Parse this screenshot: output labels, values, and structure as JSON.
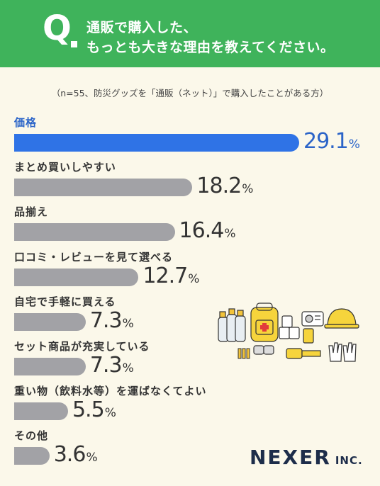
{
  "header": {
    "q_letter": "Q",
    "line1": "通販で購入した、",
    "line2": "もっとも大きな理由を教えてください。"
  },
  "subtitle": "（n=55、防災グッズを「通販（ネット）」で購入したことがある方）",
  "chart_data": {
    "type": "bar",
    "orientation": "horizontal",
    "title": "通販で購入した、もっとも大きな理由を教えてください。",
    "unit": "%",
    "categories": [
      "価格",
      "まとめ買いしやすい",
      "品揃え",
      "口コミ・レビューを見て選べる",
      "自宅で手軽に買える",
      "セット商品が充実している",
      "重い物（飲料水等）を運ばなくてよい",
      "その他"
    ],
    "values": [
      29.1,
      18.2,
      16.4,
      12.7,
      7.3,
      7.3,
      5.5,
      3.6
    ],
    "highlight_index": 0,
    "colors": {
      "highlight": "#2f73e6",
      "default": "#a2a2a6",
      "highlight_text": "#2b64c8"
    },
    "xlim": [
      0,
      29.1
    ],
    "grid": false,
    "legend": "none"
  },
  "illustration": "disaster-supplies-illustration",
  "logo": {
    "main": "NEXER",
    "suffix": "INC."
  },
  "colors": {
    "header_bg": "#3fb35b",
    "page_bg": "#fbf8ea",
    "logo": "#1d2d4a"
  }
}
